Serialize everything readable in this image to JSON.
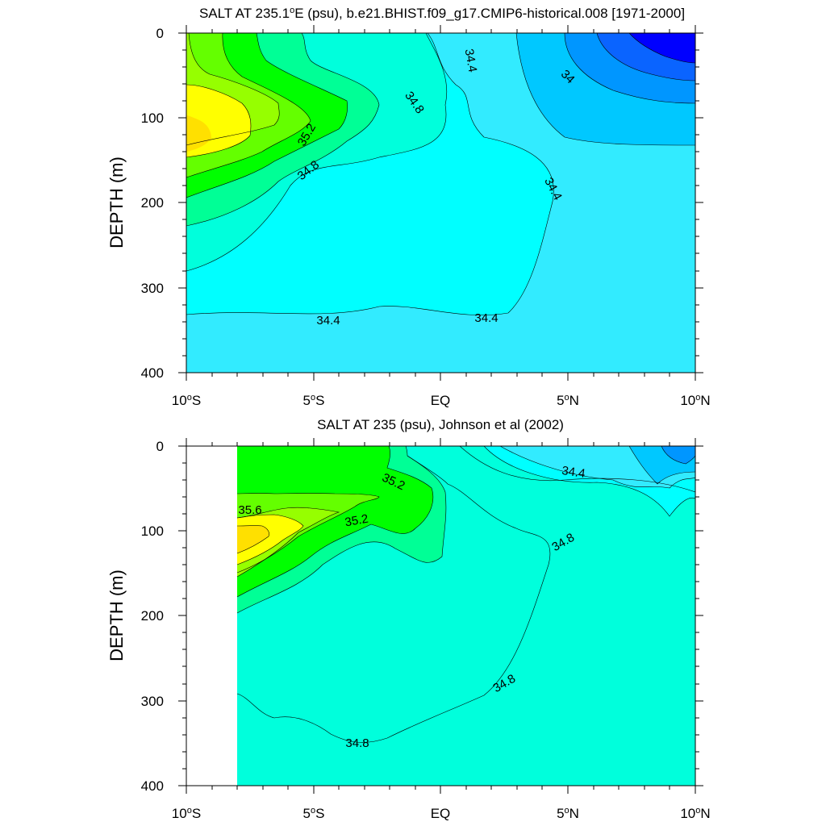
{
  "chart_data": [
    {
      "type": "contour",
      "title": "SALT AT 235.1°E (psu), b.e21.BHIST.f09_g17.CMIP6-historical.008 [1971-2000]",
      "title_parts": {
        "pre": "SALT AT 235.1",
        "sup": "o",
        "post": "E (psu), b.e21.BHIST.f09_g17.CMIP6-historical.008 [1971-2000]"
      },
      "ylabel": "DEPTH (m)",
      "xlabel": "",
      "x_range": [
        -10,
        10
      ],
      "y_range": [
        400,
        0
      ],
      "y_reversed": true,
      "x_ticks": [
        -10,
        -5,
        0,
        5,
        10
      ],
      "y_ticks": [
        0,
        100,
        200,
        300,
        400
      ],
      "contour_interval": 0.2,
      "contour_labels": [
        {
          "text": "34.4",
          "x": 1.3,
          "y": 30
        },
        {
          "text": "34",
          "x": 5.0,
          "y": 52
        },
        {
          "text": "34.8",
          "x": -1.2,
          "y": 82
        },
        {
          "text": "35.2",
          "x": -4.6,
          "y": 122
        },
        {
          "text": "34.8",
          "x": -4.7,
          "y": 165
        },
        {
          "text": "34.4",
          "x": 4.0,
          "y": 182
        },
        {
          "text": "34.4",
          "x": -4.4,
          "y": 337
        },
        {
          "text": "34.4",
          "x": 1.8,
          "y": 334
        }
      ]
    },
    {
      "type": "contour",
      "title": "SALT AT 235 (psu), Johnson et al (2002)",
      "ylabel": "DEPTH (m)",
      "xlabel": "",
      "x_range": [
        -10,
        10
      ],
      "y_range": [
        400,
        0
      ],
      "y_reversed": true,
      "x_ticks": [
        -10,
        -5,
        0,
        5,
        10
      ],
      "y_ticks": [
        0,
        100,
        200,
        300,
        400
      ],
      "data_x_start": -8,
      "contour_interval": 0.2,
      "contour_labels": [
        {
          "text": "35.2",
          "x": -1.9,
          "y": 37
        },
        {
          "text": "34.4",
          "x": 5.2,
          "y": 27
        },
        {
          "text": "35.6",
          "x": -7.5,
          "y": 75
        },
        {
          "text": "35.2",
          "x": -3.3,
          "y": 87
        },
        {
          "text": "34.8",
          "x": 4.8,
          "y": 112
        },
        {
          "text": "34.8",
          "x": 2.5,
          "y": 278
        },
        {
          "text": "34.8",
          "x": -3.2,
          "y": 348
        }
      ]
    }
  ],
  "tick_labels": {
    "x": [
      {
        "pre": "10",
        "sup": "o",
        "post": "S"
      },
      {
        "pre": "5",
        "sup": "o",
        "post": "S"
      },
      {
        "pre": "EQ",
        "sup": "",
        "post": ""
      },
      {
        "pre": "5",
        "sup": "o",
        "post": "N"
      },
      {
        "pre": "10",
        "sup": "o",
        "post": "N"
      }
    ],
    "y": [
      "0",
      "100",
      "200",
      "300",
      "400"
    ]
  },
  "colors": {
    "c33.8": "#0000ff",
    "c34.0": "#0a64ff",
    "c34.2": "#0096ff",
    "c34.4": "#00c8ff",
    "c34.6": "#32ebff",
    "c34.8": "#00ffff",
    "c35.0": "#00ffdc",
    "c35.2": "#00ff96",
    "c35.4": "#00ff00",
    "c35.6": "#64ff00",
    "c35.8": "#96ff00",
    "c36.0": "#ffff00",
    "c36.2": "#ffe000"
  }
}
